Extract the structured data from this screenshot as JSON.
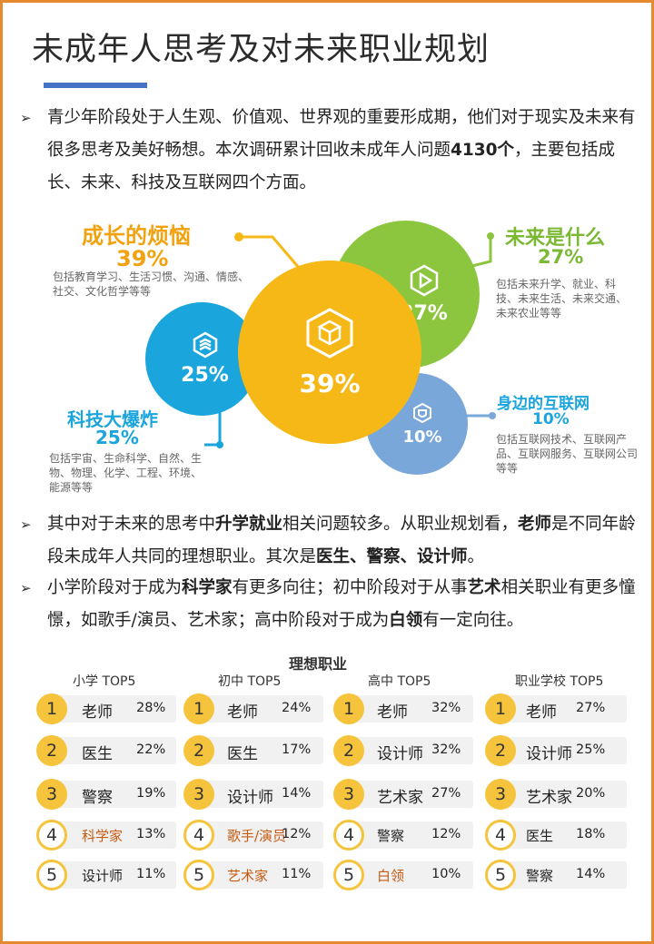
{
  "title": "未成年人思考及对未来职业规划",
  "bullet1": {
    "pre": "青少年阶段处于人生观、价值观、世界观的重要形成期，他们对于现实及未来有很多思考及美好畅想。本次调研累计回收未成年人问题",
    "bold": "4130个",
    "post": "，主要包括成长、未来、科技及互联网四个方面。"
  },
  "categories": {
    "growth": {
      "title": "成长的烦恼",
      "pct": "39%",
      "bubble_pct": "39%",
      "desc": "包括教育学习、生活习惯、沟通、情感、社交、文化哲学等等",
      "color": "#f5b817",
      "value": 39,
      "icon": "cube-icon"
    },
    "future": {
      "title": "未来是什么",
      "pct": "27%",
      "bubble_pct": "27%",
      "desc": "包括未来升学、就业、科技、未来生活、未来交通、未来农业等等",
      "color": "#8cc63f",
      "value": 27,
      "icon": "play-icon"
    },
    "tech": {
      "title": "科技大爆炸",
      "pct": "25%",
      "bubble_pct": "25%",
      "desc": "包括宇宙、生命科学、自然、生物、物理、化学、工程、环境、能源等等",
      "color": "#1aa5dc",
      "value": 25,
      "icon": "layers-icon"
    },
    "internet": {
      "title": "身边的互联网",
      "pct": "10%",
      "bubble_pct": "10%",
      "desc": "包括互联网技术、互联网产品、互联网服务、互联网公司等等",
      "color": "#7aa7d9",
      "value": 10,
      "icon": "shield-icon"
    }
  },
  "bullet2": {
    "t1": "其中对于未来的思考中",
    "b1": "升学就业",
    "t2": "相关问题较多。从职业规划看，",
    "b2": "老师",
    "t3": "是不同年龄段未成年人共同的理想职业。其次是",
    "b3": "医生、警察、设计师",
    "t4": "。"
  },
  "bullet3": {
    "t1": "小学阶段对于成为",
    "b1": "科学家",
    "t2": "有更多向往；初中阶段对于从事",
    "b2": "艺术",
    "t3": "相关职业有更多憧憬，如歌手/演员、艺术家；高中阶段对于成为",
    "b3": "白领",
    "t4": "有一定向往。"
  },
  "table": {
    "title": "理想职业",
    "columns": [
      {
        "head": "小学 TOP5",
        "items": [
          {
            "rank": "1",
            "job": "老师",
            "pct": "28%"
          },
          {
            "rank": "2",
            "job": "医生",
            "pct": "22%"
          },
          {
            "rank": "3",
            "job": "警察",
            "pct": "19%"
          },
          {
            "rank": "4",
            "job": "科学家",
            "pct": "13%"
          },
          {
            "rank": "5",
            "job": "设计师",
            "pct": "11%"
          }
        ]
      },
      {
        "head": "初中 TOP5",
        "items": [
          {
            "rank": "1",
            "job": "老师",
            "pct": "24%"
          },
          {
            "rank": "2",
            "job": "医生",
            "pct": "17%"
          },
          {
            "rank": "3",
            "job": "设计师",
            "pct": "14%"
          },
          {
            "rank": "4",
            "job": "歌手/演员",
            "pct": "12%"
          },
          {
            "rank": "5",
            "job": "艺术家",
            "pct": "11%"
          }
        ]
      },
      {
        "head": "高中 TOP5",
        "items": [
          {
            "rank": "1",
            "job": "老师",
            "pct": "32%"
          },
          {
            "rank": "2",
            "job": "设计师",
            "pct": "32%"
          },
          {
            "rank": "3",
            "job": "艺术家",
            "pct": "27%"
          },
          {
            "rank": "4",
            "job": "警察",
            "pct": "12%"
          },
          {
            "rank": "5",
            "job": "白领",
            "pct": "10%"
          }
        ]
      },
      {
        "head": "职业学校 TOP5",
        "items": [
          {
            "rank": "1",
            "job": "老师",
            "pct": "27%"
          },
          {
            "rank": "2",
            "job": "设计师",
            "pct": "25%"
          },
          {
            "rank": "3",
            "job": "艺术家",
            "pct": "20%"
          },
          {
            "rank": "4",
            "job": "医生",
            "pct": "18%"
          },
          {
            "rank": "5",
            "job": "警察",
            "pct": "14%"
          }
        ]
      }
    ]
  },
  "colors": {
    "border": "#e58a2e",
    "accent": "#4472c4",
    "rank_gold": "#f6c33c",
    "highlight_text": "#c55a11"
  }
}
